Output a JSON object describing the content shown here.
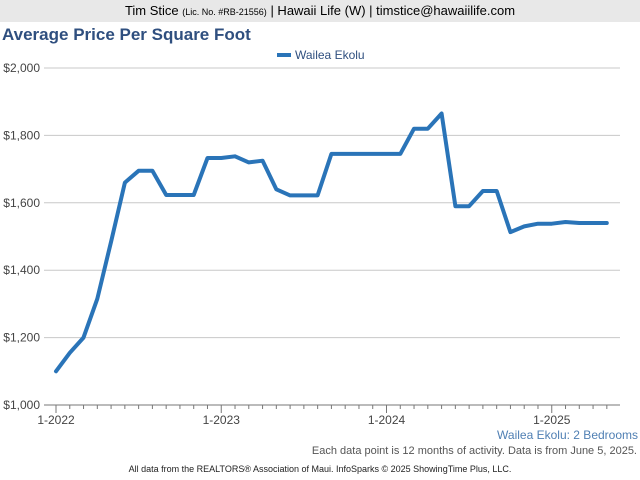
{
  "header": {
    "agent": "Tim Stice",
    "license": "(Lic. No. #RB-21556)",
    "rest": "| Hawaii Life (W) | timstice@hawaiilife.com"
  },
  "subtitle": "Wailea Ekolu: 2 Bedrooms",
  "note": "Each data point is 12 months of activity. Data is from June 5, 2025.",
  "footer": "All data from the REALTORS® Association of Maui. InfoSparks © 2025 ShowingTime Plus, LLC.",
  "colors": {
    "series": "#2a74b8",
    "title": "#2f4f7f",
    "grid": "#c8c8c8"
  },
  "chart_data": {
    "type": "line",
    "title": "Average Price Per Square Foot",
    "grid": true,
    "legend_position": "top-center",
    "ylim": [
      1000,
      2000
    ],
    "y_ticks": [
      {
        "value": 1000,
        "label": "$1,000"
      },
      {
        "value": 1200,
        "label": "$1,200"
      },
      {
        "value": 1400,
        "label": "$1,400"
      },
      {
        "value": 1600,
        "label": "$1,600"
      },
      {
        "value": 1800,
        "label": "$1,800"
      },
      {
        "value": 2000,
        "label": "$2,000"
      }
    ],
    "x_ticks": [
      "1-2022",
      "1-2023",
      "1-2024",
      "1-2025"
    ],
    "x": [
      "2022-01",
      "2022-02",
      "2022-03",
      "2022-04",
      "2022-05",
      "2022-06",
      "2022-07",
      "2022-08",
      "2022-09",
      "2022-10",
      "2022-11",
      "2022-12",
      "2023-01",
      "2023-02",
      "2023-03",
      "2023-04",
      "2023-05",
      "2023-06",
      "2023-07",
      "2023-08",
      "2023-09",
      "2023-10",
      "2023-11",
      "2023-12",
      "2024-01",
      "2024-02",
      "2024-03",
      "2024-04",
      "2024-05",
      "2024-06",
      "2024-07",
      "2024-08",
      "2024-09",
      "2024-10",
      "2024-11",
      "2024-12",
      "2025-01",
      "2025-02",
      "2025-03",
      "2025-04",
      "2025-05"
    ],
    "series": [
      {
        "name": "Wailea Ekolu",
        "values": [
          1100,
          1155,
          1200,
          1315,
          1485,
          1660,
          1695,
          1695,
          1623,
          1623,
          1623,
          1733,
          1733,
          1738,
          1720,
          1725,
          1640,
          1622,
          1622,
          1622,
          1745,
          1745,
          1745,
          1745,
          1745,
          1745,
          1820,
          1820,
          1865,
          1590,
          1590,
          1635,
          1635,
          1513,
          1530,
          1538,
          1538,
          1543,
          1540,
          1540,
          1540
        ]
      }
    ]
  }
}
